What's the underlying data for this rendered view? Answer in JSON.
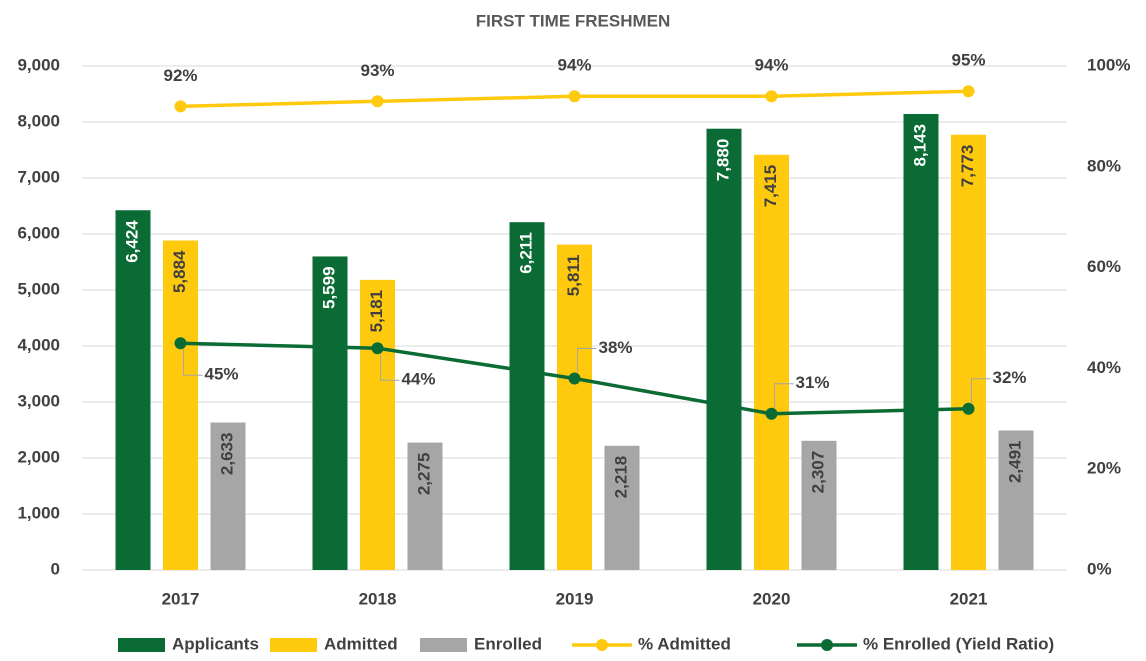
{
  "chart_data": {
    "type": "bar",
    "title": "FIRST TIME FRESHMEN",
    "categories": [
      "2017",
      "2018",
      "2019",
      "2020",
      "2021"
    ],
    "series": [
      {
        "name": "Applicants",
        "type": "bar",
        "color": "#0a6b34",
        "values": [
          6424,
          5599,
          6211,
          7880,
          8143
        ],
        "value_labels": [
          "6,424",
          "5,599",
          "6,211",
          "7,880",
          "8,143"
        ]
      },
      {
        "name": "Admitted",
        "type": "bar",
        "color": "#ffc90e",
        "values": [
          5884,
          5181,
          5811,
          7415,
          7773
        ],
        "value_labels": [
          "5,884",
          "5,181",
          "5,811",
          "7,415",
          "7,773"
        ]
      },
      {
        "name": "Enrolled",
        "type": "bar",
        "color": "#a6a6a6",
        "values": [
          2633,
          2275,
          2218,
          2307,
          2491
        ],
        "value_labels": [
          "2,633",
          "2,275",
          "2,218",
          "2,307",
          "2,491"
        ]
      },
      {
        "name": "% Admitted",
        "type": "line",
        "axis": "y2",
        "color": "#ffc90e",
        "values": [
          92,
          93,
          94,
          94,
          95
        ],
        "value_labels": [
          "92%",
          "93%",
          "94%",
          "94%",
          "95%"
        ]
      },
      {
        "name": "% Enrolled (Yield Ratio)",
        "type": "line",
        "axis": "y2",
        "color": "#0a6b34",
        "values": [
          45,
          44,
          38,
          31,
          32
        ],
        "value_labels": [
          "45%",
          "44%",
          "38%",
          "31%",
          "32%"
        ]
      }
    ],
    "ylim": [
      0,
      9000
    ],
    "yticks": [
      0,
      {
        "value": 1000,
        "label": "1,000"
      },
      {
        "value": 2000,
        "label": "2,000"
      },
      {
        "value": 3000,
        "label": "3,000"
      },
      {
        "value": 4000,
        "label": "4,000"
      },
      {
        "value": 5000,
        "label": "5,000"
      },
      {
        "value": 6000,
        "label": "6,000"
      },
      {
        "value": 7000,
        "label": "7,000"
      },
      {
        "value": 8000,
        "label": "8,000"
      },
      {
        "value": 9000,
        "label": "9,000"
      }
    ],
    "y2lim": [
      0,
      100
    ],
    "y2ticks": [
      {
        "value": 0,
        "label": "0%"
      },
      {
        "value": 20,
        "label": "20%"
      },
      {
        "value": 40,
        "label": "40%"
      },
      {
        "value": 60,
        "label": "60%"
      },
      {
        "value": 80,
        "label": "80%"
      },
      {
        "value": 100,
        "label": "100%"
      }
    ],
    "grid": true,
    "legend": "bottom"
  }
}
